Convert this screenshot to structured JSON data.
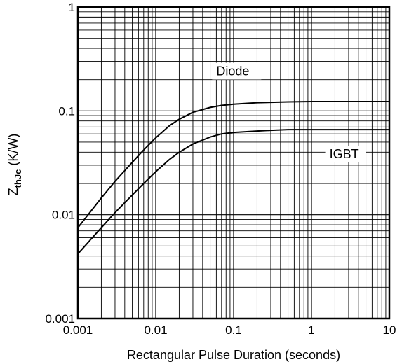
{
  "chart_data": {
    "type": "line",
    "title": "",
    "xlabel": "Rectangular Pulse Duration (seconds)",
    "ylabel": {
      "main": "Z",
      "sub": "thJc",
      "unit": " (K/W)"
    },
    "x_scale": "log",
    "y_scale": "log",
    "xlim": [
      0.001,
      10
    ],
    "ylim": [
      0.001,
      1
    ],
    "x_ticks": [
      {
        "value": 0.001,
        "label": "0.001"
      },
      {
        "value": 0.01,
        "label": "0.01"
      },
      {
        "value": 0.1,
        "label": "0.1"
      },
      {
        "value": 1,
        "label": "1"
      },
      {
        "value": 10,
        "label": "10"
      }
    ],
    "y_ticks": [
      {
        "value": 0.001,
        "label": "0.001"
      },
      {
        "value": 0.01,
        "label": "0.01"
      },
      {
        "value": 0.1,
        "label": "0.1"
      },
      {
        "value": 1,
        "label": "1"
      }
    ],
    "grid": true,
    "series": [
      {
        "name": "Diode",
        "label_position": {
          "x": 0.06,
          "y": 0.22
        },
        "x": [
          0.001,
          0.002,
          0.003,
          0.005,
          0.007,
          0.01,
          0.015,
          0.02,
          0.03,
          0.05,
          0.07,
          0.1,
          0.2,
          0.3,
          0.5,
          1,
          2,
          5,
          10
        ],
        "y": [
          0.0075,
          0.0145,
          0.021,
          0.032,
          0.042,
          0.055,
          0.072,
          0.083,
          0.097,
          0.108,
          0.113,
          0.116,
          0.12,
          0.121,
          0.122,
          0.123,
          0.123,
          0.123,
          0.123
        ]
      },
      {
        "name": "IGBT",
        "label_position": {
          "x": 1.7,
          "y": 0.035
        },
        "x": [
          0.001,
          0.002,
          0.003,
          0.005,
          0.007,
          0.01,
          0.015,
          0.02,
          0.03,
          0.05,
          0.07,
          0.1,
          0.2,
          0.3,
          0.5,
          1,
          2,
          5,
          10
        ],
        "y": [
          0.0042,
          0.0075,
          0.0105,
          0.0155,
          0.02,
          0.026,
          0.034,
          0.04,
          0.048,
          0.056,
          0.06,
          0.062,
          0.064,
          0.065,
          0.066,
          0.066,
          0.066,
          0.066,
          0.066
        ]
      }
    ]
  }
}
